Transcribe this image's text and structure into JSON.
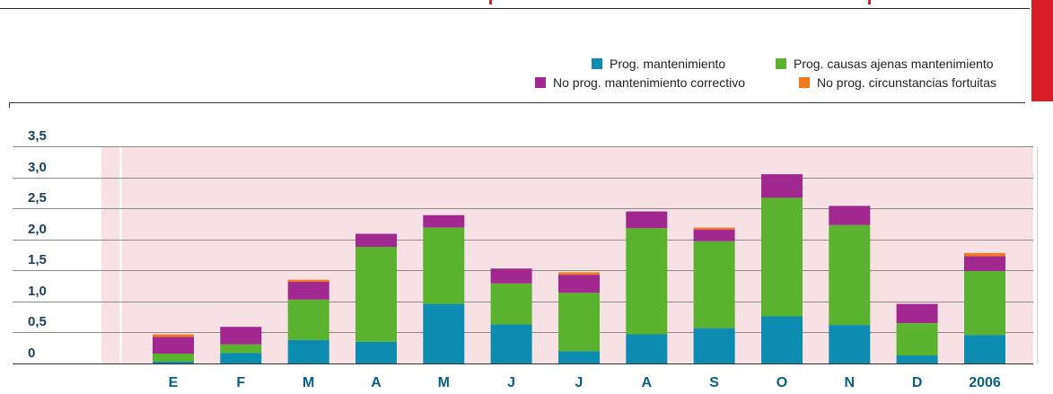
{
  "chart_data": {
    "type": "bar",
    "stacked": true,
    "categories": [
      "E",
      "F",
      "M",
      "A",
      "M",
      "J",
      "J",
      "A",
      "S",
      "O",
      "N",
      "D",
      "2006"
    ],
    "series": [
      {
        "name": "Prog. mantenimiento",
        "color": "#0b8cb0",
        "values": [
          0.03,
          0.17,
          0.38,
          0.35,
          0.96,
          0.63,
          0.2,
          0.47,
          0.57,
          0.76,
          0.62,
          0.13,
          0.46
        ]
      },
      {
        "name": "Prog. causas ajenas mantenimiento",
        "color": "#5ab22e",
        "values": [
          0.13,
          0.14,
          0.65,
          1.53,
          1.23,
          0.66,
          0.94,
          1.71,
          1.4,
          1.91,
          1.61,
          0.52,
          1.03
        ]
      },
      {
        "name": "No prog. mantenimiento correctivo",
        "color": "#a0288f",
        "values": [
          0.27,
          0.28,
          0.29,
          0.21,
          0.2,
          0.24,
          0.29,
          0.27,
          0.19,
          0.38,
          0.31,
          0.31,
          0.24
        ]
      },
      {
        "name": "No prog. circunstancias fortuitas",
        "color": "#f07a1c",
        "values": [
          0.04,
          0.0,
          0.03,
          0.0,
          0.0,
          0.0,
          0.04,
          0.0,
          0.03,
          0.0,
          0.0,
          0.0,
          0.05
        ]
      }
    ],
    "yticks": [
      "0",
      "0,5",
      "1,0",
      "1,5",
      "2,0",
      "2,5",
      "3,0",
      "3,5"
    ],
    "ylim": [
      0,
      3.5
    ],
    "grid": true,
    "legend": "top-right",
    "colors": {
      "plot_background": "#f7e1e4",
      "accent": "#d81e25",
      "axis_text": "#1d3f57",
      "category_text": "#0b5f80"
    }
  }
}
